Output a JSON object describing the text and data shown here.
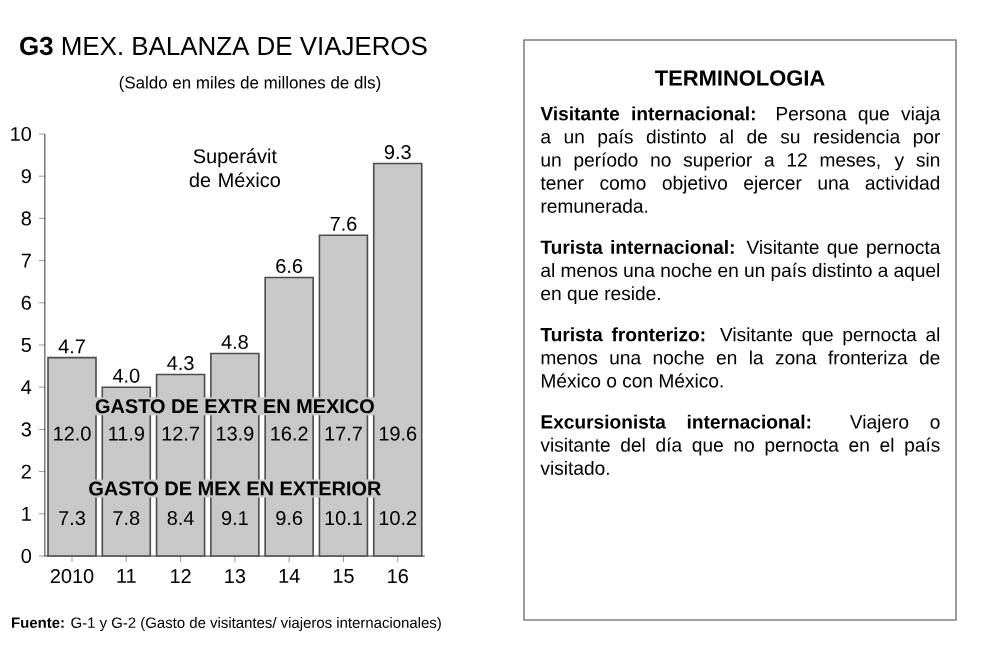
{
  "chart_data": [
    {
      "type": "bar",
      "title": "**G3** MEX. BALANZA DE VIAJEROS",
      "subtitle": "(Saldo en miles de millones de dls)",
      "categories": [
        "2010",
        "11",
        "12",
        "13",
        "14",
        "15",
        "16"
      ],
      "values": [
        4.7,
        4.0,
        4.3,
        4.8,
        6.6,
        7.6,
        9.3
      ],
      "color": "#c8c8c8",
      "ylim": [
        0,
        10
      ],
      "yticks": [
        0,
        1,
        2,
        3,
        4,
        5,
        6,
        7,
        8,
        9,
        10
      ],
      "value_labels": [
        "4.7",
        "4.0",
        "4.3",
        "4.8",
        "6.6",
        "7.6",
        "9.3"
      ],
      "annotations": [
        "Superávit de México",
        "GASTO DE EXTR EN MEXICO",
        "12.0",
        "11.9",
        "12.7",
        "13.9",
        "16.2",
        "17.7",
        "19.6",
        "GASTO DE MEX EN EXTERIOR",
        "7.3",
        "7.8",
        "8.4",
        "9.1",
        "9.6",
        "10.1",
        "10.2",
        "**Fuente:** G-1 y G-2 (Gasto de visitantes/ viajeros internacionales)"
      ]
    },
    {
      "type": "other",
      "title": "TERMINOLOGIA",
      "annotations": [
        "**Visitante internacional:** Persona que viaja a un país distinto al de su residencia por un período no superior a 12 meses, y sin tener como objetivo ejercer una actividad remunerada.",
        "**Turista internacional:** Visitante que pernocta al menos una noche en un país distinto a aquel en que reside.",
        "**Turista fronterizo:** Visitante que pernocta al menos una noche en la zona fronteriza de México o con México.",
        "**Excursionista internacional:** Viajero o visitante del día que no pernocta en el país visitado."
      ]
    }
  ]
}
